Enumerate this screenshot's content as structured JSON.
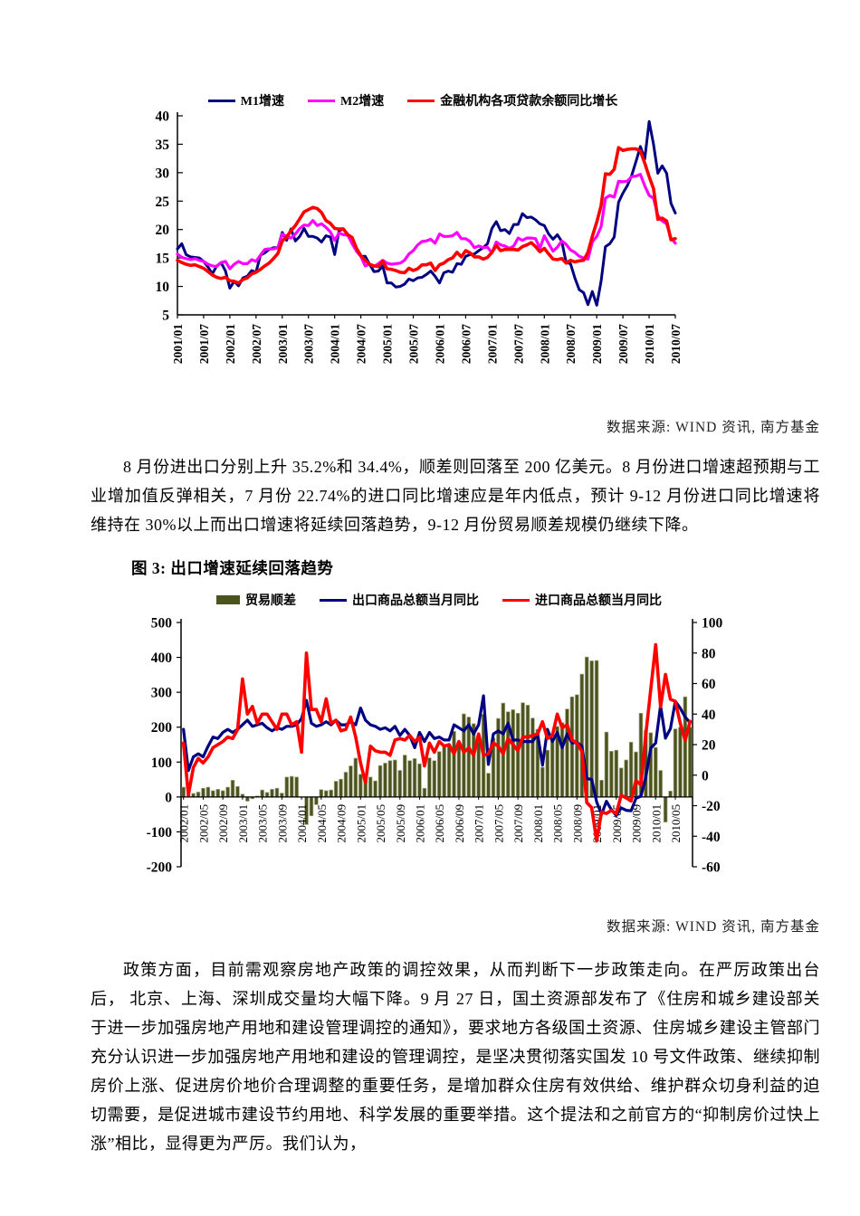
{
  "page": {
    "source_note": "数据来源: WIND 资讯, 南方基金",
    "paragraph_1": "8 月份进出口分别上升 35.2%和 34.4%，顺差则回落至 200 亿美元。8 月份进口增速超预期与工业增加值反弹相关，7 月份 22.74%的进口同比增速应是年内低点，预计 9-12 月份进口同比增速将维持在 30%以上而出口增速将延续回落趋势，9-12 月份贸易顺差规模仍继续下降。",
    "figure_3_title": "图 3: 出口增速延续回落趋势",
    "paragraph_2": "政策方面，目前需观察房地产政策的调控效果，从而判断下一步政策走向。在严厉政策出台后， 北京、上海、深圳成交量均大幅下降。9 月 27 日，国土资源部发布了《住房和城乡建设部关于进一步加强房地产用地和建设管理调控的通知》，要求地方各级国土资源、住房城乡建设主管部门充分认识进一步加强房地产用地和建设的管理调控，是坚决贯彻落实国发 10 号文件政策、继续抑制房价上涨、促进房价地价合理调整的重要任务，是增加群众住房有效供给、维护群众切身利益的迫切需要，是促进城市建设节约用地、科学发展的重要举措。这个提法和之前官方的“抑制房价过快上涨”相比，显得更为严厉。我们认为，"
  },
  "chart_data": [
    {
      "type": "line",
      "title": "",
      "x_start": "2001/01",
      "x_end": "2010/07",
      "n_months": 115,
      "ylim": [
        5,
        40
      ],
      "y_tick_step": 5,
      "y_tick_labels": [
        "5",
        "10",
        "15",
        "20",
        "25",
        "30",
        "35",
        "40"
      ],
      "x_tick_every": 6,
      "x_tick_labels": [
        "2001/01",
        "2001/07",
        "2002/01",
        "2002/07",
        "2003/01",
        "2003/07",
        "2004/01",
        "2004/07",
        "2005/01",
        "2005/07",
        "2006/01",
        "2006/07",
        "2007/01",
        "2007/07",
        "2008/01",
        "2008/07",
        "2009/01",
        "2009/07",
        "2010/01",
        "2010/07"
      ],
      "legend_position": "top",
      "grid": false,
      "series": [
        {
          "name": "M1增速",
          "color": "#000080",
          "width": 3,
          "values": [
            16.6,
            17.5,
            15.6,
            15.2,
            15.1,
            15.0,
            14.4,
            13.4,
            12.2,
            13.6,
            14.2,
            12.7,
            9.7,
            10.9,
            10.1,
            11.5,
            11.8,
            12.8,
            12.5,
            15.5,
            15.9,
            16.5,
            16.8,
            16.8,
            19.5,
            18.1,
            20.1,
            18.0,
            18.8,
            20.2,
            18.8,
            18.8,
            18.5,
            17.8,
            18.9,
            18.7,
            15.6,
            19.8,
            20.1,
            19.1,
            18.6,
            16.2,
            15.3,
            15.3,
            13.9,
            12.6,
            12.7,
            13.6,
            10.6,
            10.6,
            9.9,
            10.0,
            10.4,
            11.3,
            11.0,
            11.5,
            11.6,
            12.1,
            12.7,
            11.8,
            10.6,
            12.4,
            12.7,
            12.5,
            14.0,
            13.9,
            15.3,
            15.6,
            15.7,
            16.3,
            16.8,
            17.5,
            20.2,
            21.4,
            19.8,
            20.0,
            19.3,
            20.9,
            20.9,
            22.8,
            22.1,
            22.2,
            21.7,
            21.0,
            20.7,
            19.2,
            18.3,
            19.1,
            17.9,
            14.2,
            14.0,
            11.5,
            9.4,
            8.9,
            6.8,
            9.1,
            6.7,
            10.9,
            17.0,
            17.5,
            18.7,
            24.8,
            26.4,
            27.7,
            29.5,
            32.0,
            34.6,
            32.4,
            39.0,
            35.0,
            29.9,
            31.2,
            29.9,
            24.6,
            22.9
          ]
        },
        {
          "name": "M2增速",
          "color": "#ff00ff",
          "width": 3.2,
          "values": [
            15.7,
            15.1,
            14.9,
            14.7,
            14.9,
            14.6,
            14.4,
            13.9,
            13.6,
            13.5,
            14.2,
            14.4,
            13.1,
            13.9,
            14.4,
            14.0,
            14.0,
            14.7,
            14.4,
            15.5,
            16.5,
            16.6,
            16.6,
            16.8,
            19.2,
            18.8,
            18.5,
            19.2,
            20.2,
            20.8,
            20.7,
            21.6,
            20.7,
            21.0,
            20.4,
            19.6,
            18.1,
            19.4,
            19.1,
            19.0,
            17.5,
            16.2,
            15.3,
            13.6,
            13.9,
            13.5,
            14.0,
            14.6,
            14.1,
            13.9,
            14.0,
            14.1,
            14.6,
            15.7,
            16.3,
            17.3,
            17.9,
            18.0,
            18.3,
            17.6,
            19.2,
            18.8,
            18.8,
            18.9,
            19.5,
            18.4,
            18.4,
            17.9,
            16.8,
            17.1,
            16.8,
            16.9,
            15.9,
            17.8,
            17.3,
            17.1,
            16.7,
            17.1,
            18.5,
            18.1,
            18.5,
            18.5,
            18.4,
            16.7,
            18.9,
            17.5,
            16.2,
            16.9,
            18.0,
            17.4,
            16.4,
            16.0,
            15.3,
            15.0,
            14.8,
            17.8,
            18.8,
            20.5,
            25.5,
            26.0,
            25.7,
            28.5,
            28.4,
            28.5,
            29.3,
            29.4,
            29.7,
            27.7,
            26.0,
            25.5,
            22.5,
            21.5,
            21.0,
            18.5,
            17.6
          ]
        },
        {
          "name": "金融机构各项贷款余额同比增长",
          "color": "#ff0000",
          "width": 3.6,
          "values": [
            14.6,
            14.2,
            13.9,
            13.7,
            13.8,
            13.5,
            13.2,
            12.6,
            12.0,
            11.6,
            11.4,
            11.6,
            11.0,
            10.9,
            10.6,
            11.2,
            11.5,
            12.2,
            12.5,
            13.0,
            13.6,
            14.1,
            14.9,
            15.8,
            18.0,
            18.7,
            19.8,
            20.7,
            21.9,
            23.1,
            23.5,
            23.9,
            23.7,
            23.0,
            21.6,
            21.1,
            20.2,
            20.1,
            20.1,
            19.1,
            18.6,
            16.7,
            15.4,
            14.6,
            13.9,
            13.6,
            13.5,
            14.4,
            13.1,
            13.0,
            12.8,
            12.5,
            12.4,
            13.2,
            12.8,
            13.1,
            13.8,
            13.8,
            14.1,
            12.8,
            13.8,
            14.1,
            14.7,
            15.0,
            16.0,
            15.2,
            16.3,
            15.9,
            15.2,
            15.2,
            14.8,
            15.1,
            16.0,
            17.2,
            16.3,
            16.5,
            16.5,
            16.5,
            16.4,
            17.0,
            17.3,
            17.7,
            17.0,
            16.1,
            16.7,
            15.7,
            14.8,
            14.7,
            14.9,
            14.1,
            14.6,
            14.3,
            14.5,
            14.6,
            16.0,
            18.8,
            21.3,
            24.2,
            29.8,
            29.7,
            30.6,
            34.4,
            33.9,
            34.1,
            34.2,
            34.2,
            33.8,
            31.7,
            29.3,
            27.2,
            21.8,
            22.0,
            21.5,
            18.2,
            18.4
          ]
        }
      ],
      "source": "数据来源: WIND 资讯, 南方基金"
    },
    {
      "type": "combo-bar-line",
      "title": "图 3: 出口增速延续回落趋势",
      "x_start": "2002/01",
      "x_end": "2010/08",
      "n_months": 104,
      "left_ylim": [
        -200,
        500
      ],
      "left_y_tick_step": 100,
      "left_y_tick_labels": [
        "-200",
        "-100",
        "0",
        "100",
        "200",
        "300",
        "400",
        "500"
      ],
      "right_ylim": [
        -60,
        100
      ],
      "right_y_tick_step": 20,
      "right_y_tick_labels": [
        "-60",
        "-40",
        "-20",
        "0",
        "20",
        "40",
        "60",
        "80",
        "100"
      ],
      "x_tick_every": 4,
      "x_tick_labels": [
        "2002/01",
        "2002/05",
        "2002/09",
        "2003/01",
        "2003/05",
        "2003/09",
        "2004/01",
        "2004/05",
        "2004/09",
        "2005/01",
        "2005/05",
        "2005/09",
        "2006/01",
        "2006/05",
        "2006/09",
        "2007/01",
        "2007/05",
        "2007/09",
        "2008/01",
        "2008/05",
        "2008/09",
        "2009/01",
        "2009/05",
        "2009/09",
        "2010/01",
        "2010/05"
      ],
      "legend_position": "top",
      "grid": false,
      "bar_series": {
        "name": "贸易顺差",
        "color": "#4b5320",
        "edge_color": "#a6aa7e",
        "axis": "left",
        "values": [
          28,
          6,
          10,
          14,
          25,
          28,
          18,
          22,
          18,
          28,
          48,
          30,
          8,
          -12,
          -5,
          3,
          20,
          13,
          22,
          25,
          11,
          57,
          59,
          57,
          -1,
          -79,
          -54,
          -22,
          21,
          18,
          20,
          45,
          51,
          71,
          89,
          111,
          65,
          46,
          57,
          46,
          90,
          97,
          104,
          106,
          76,
          120,
          104,
          110,
          95,
          25,
          112,
          104,
          130,
          145,
          146,
          188,
          153,
          238,
          229,
          210,
          158,
          237,
          68,
          169,
          225,
          269,
          244,
          250,
          240,
          270,
          263,
          226,
          194,
          85,
          134,
          168,
          202,
          213,
          252,
          287,
          293,
          352,
          401,
          390,
          391,
          48,
          186,
          131,
          134,
          83,
          106,
          157,
          129,
          240,
          191,
          184,
          142,
          76,
          -72,
          17,
          195,
          200,
          287,
          200
        ]
      },
      "series": [
        {
          "name": "出口商品总额当月同比",
          "color": "#000080",
          "width": 3.2,
          "axis": "right",
          "values": [
            30,
            3,
            12,
            14,
            12,
            19,
            25,
            24,
            28,
            30,
            28,
            30,
            33,
            36,
            32,
            33,
            34,
            31,
            29,
            31,
            30,
            32,
            32,
            33,
            37,
            49,
            34,
            32,
            33,
            35,
            33,
            36,
            33,
            33,
            35,
            33,
            44,
            36,
            33,
            32,
            30,
            31,
            29,
            32,
            26,
            30,
            26,
            18,
            28,
            22,
            28,
            24,
            25,
            23,
            23,
            33,
            31,
            29,
            33,
            27,
            33,
            52,
            7,
            27,
            29,
            27,
            34,
            23,
            23,
            22,
            22,
            22,
            27,
            6.5,
            30,
            22,
            28,
            18,
            27,
            21,
            21.5,
            19,
            -2.2,
            -2.8,
            -17.5,
            -25.7,
            -17.1,
            -22.6,
            -26.4,
            -21.4,
            -23,
            -23.4,
            -15.2,
            -13.8,
            -1.2,
            17.7,
            21,
            45.7,
            24.2,
            30.4,
            48.4,
            43.9,
            38,
            34.4
          ]
        },
        {
          "name": "进口商品总额当月同比",
          "color": "#ff0000",
          "width": 3.6,
          "axis": "right",
          "values": [
            21,
            -13,
            5,
            11,
            8,
            12,
            18,
            20,
            22,
            25,
            24,
            30,
            63,
            40,
            45,
            34,
            40,
            40,
            35,
            30,
            40,
            40,
            33,
            35,
            15,
            80,
            43,
            43,
            35,
            50,
            34,
            36,
            29,
            30,
            38,
            25,
            8,
            -5,
            19,
            16,
            15,
            15,
            13,
            23,
            24,
            23,
            26,
            22,
            25,
            6,
            21,
            15,
            22,
            19,
            20,
            14,
            22,
            15,
            18,
            13,
            27,
            13,
            14,
            21,
            19,
            14,
            24,
            20,
            16,
            25,
            25,
            26,
            27,
            35,
            24,
            26,
            40,
            31,
            33,
            23,
            21,
            15.6,
            -17.9,
            -21.3,
            -43.1,
            -24.1,
            -25.1,
            -23,
            -25.2,
            -13.2,
            -14.9,
            -17,
            -3.5,
            -6.4,
            26.7,
            55.9,
            85.5,
            44.7,
            66,
            49.7,
            48.3,
            34.1,
            22.7,
            35.2
          ]
        }
      ],
      "source": "数据来源: WIND 资讯, 南方基金"
    }
  ]
}
